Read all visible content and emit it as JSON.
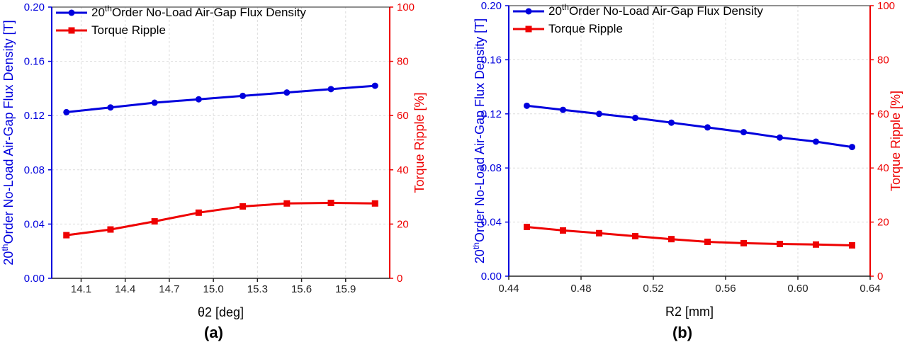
{
  "chart_data": [
    {
      "type": "line",
      "panel_label": "(a)",
      "xlabel": "θ2 [deg]",
      "ylabel_left_main": "Order No-Load Air-Gap Flux Density [T]",
      "ylabel_left_prefix": "20",
      "ylabel_left_sup": "th",
      "ylabel_right": "Torque Ripple [%]",
      "xlim": [
        13.9,
        16.2
      ],
      "ylim_left": [
        0,
        0.2
      ],
      "ylim_right": [
        0,
        100
      ],
      "xticks": [
        "14.1",
        "14.4",
        "14.7",
        "15.0",
        "15.3",
        "15.6",
        "15.9"
      ],
      "yticks_left": [
        "0.00",
        "0.04",
        "0.08",
        "0.12",
        "0.16",
        "0.20"
      ],
      "yticks_right": [
        "0",
        "20",
        "40",
        "60",
        "80",
        "100"
      ],
      "x": [
        14.0,
        14.3,
        14.6,
        14.9,
        15.2,
        15.5,
        15.8,
        16.1
      ],
      "grid": true,
      "legend_position": "top-left",
      "series": [
        {
          "name_prefix": "20",
          "name_sup": "th",
          "name_main": "Order No-Load Air-Gap Flux Density",
          "axis": "left",
          "color": "#0000dd",
          "marker": "circle",
          "values": [
            0.1225,
            0.126,
            0.1295,
            0.132,
            0.1345,
            0.137,
            0.1395,
            0.142
          ]
        },
        {
          "name_main": "Torque Ripple",
          "axis": "right",
          "color": "#ee0000",
          "marker": "square",
          "values": [
            15.9,
            18.0,
            21.0,
            24.2,
            26.5,
            27.6,
            27.8,
            27.6
          ]
        }
      ]
    },
    {
      "type": "line",
      "panel_label": "(b)",
      "xlabel": "R2 [mm]",
      "ylabel_left_main": "Order No-Load Air-Gap Flux Density [T]",
      "ylabel_left_prefix": "20",
      "ylabel_left_sup": "th",
      "ylabel_right": "Torque Ripple [%]",
      "xlim": [
        0.44,
        0.64
      ],
      "ylim_left": [
        0,
        0.2
      ],
      "ylim_right": [
        0,
        100
      ],
      "xticks": [
        "0.44",
        "0.48",
        "0.52",
        "0.56",
        "0.60",
        "0.64"
      ],
      "yticks_left": [
        "0.00",
        "0.04",
        "0.08",
        "0.12",
        "0.16",
        "0.20"
      ],
      "yticks_right": [
        "0",
        "20",
        "40",
        "60",
        "80",
        "100"
      ],
      "x": [
        0.45,
        0.47,
        0.49,
        0.51,
        0.53,
        0.55,
        0.57,
        0.59,
        0.61,
        0.63
      ],
      "grid": true,
      "legend_position": "top-left",
      "series": [
        {
          "name_prefix": "20",
          "name_sup": "th",
          "name_main": "Order No-Load Air-Gap Flux Density",
          "axis": "left",
          "color": "#0000dd",
          "marker": "circle",
          "values": [
            0.126,
            0.123,
            0.12,
            0.117,
            0.1135,
            0.11,
            0.1065,
            0.1025,
            0.0995,
            0.0955
          ]
        },
        {
          "name_main": "Torque Ripple",
          "axis": "right",
          "color": "#ee0000",
          "marker": "square",
          "values": [
            18.2,
            16.9,
            15.9,
            14.8,
            13.7,
            12.7,
            12.2,
            11.9,
            11.7,
            11.4
          ]
        }
      ]
    }
  ]
}
